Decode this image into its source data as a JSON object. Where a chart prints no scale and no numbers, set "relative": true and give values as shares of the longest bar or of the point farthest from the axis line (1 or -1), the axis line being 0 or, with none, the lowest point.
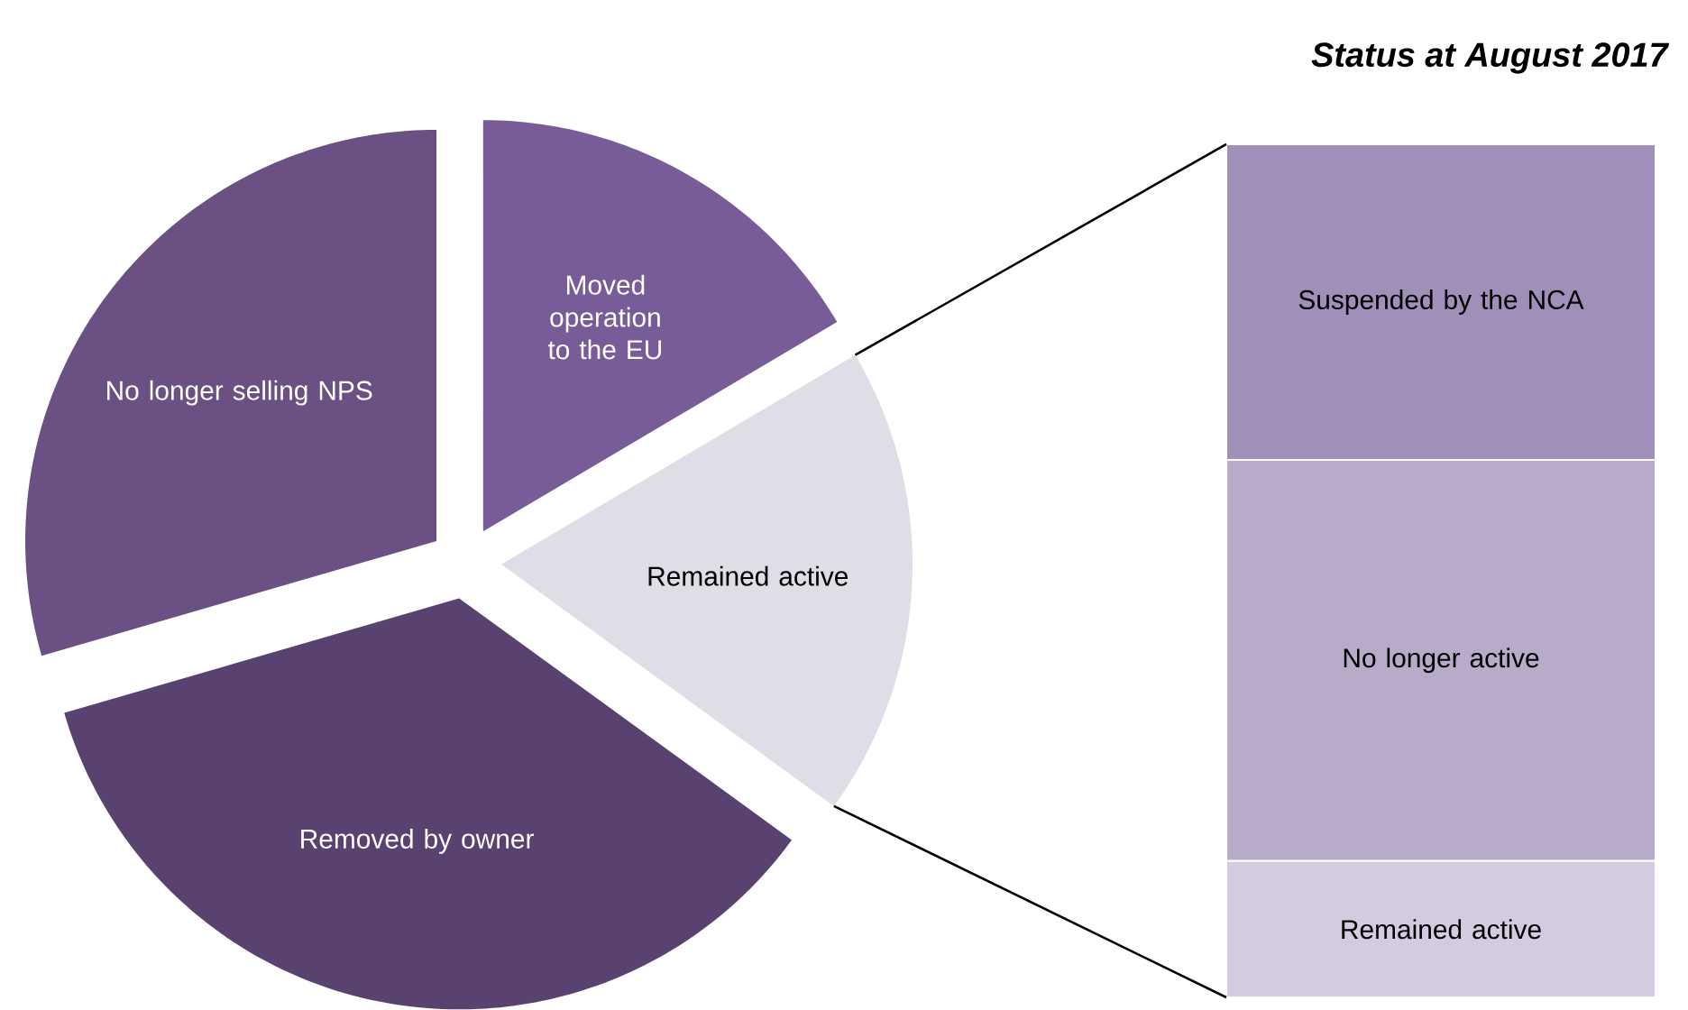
{
  "chart_data": [
    {
      "type": "pie",
      "categories": [
        "Moved operation to the EU",
        "Remained active",
        "Removed by owner",
        "No longer selling NPS"
      ],
      "values": [
        16.5,
        18.5,
        35.5,
        29.5
      ],
      "colors": [
        "#775c97",
        "#e0dde6",
        "#5a4270",
        "#6a5083"
      ]
    },
    {
      "type": "bar",
      "title": "Status at August 2017",
      "categories": [
        null
      ],
      "stacked": true,
      "relative": true,
      "legend": false,
      "series": [
        {
          "name": "Remained active",
          "color": "#d4cbe0",
          "values": [
            0.16
          ]
        },
        {
          "name": "No longer active",
          "color": "#b8abc9",
          "values": [
            0.47
          ]
        },
        {
          "name": "Suspended by the NCA",
          "color": "#a08fb8",
          "values": [
            0.37
          ]
        }
      ]
    }
  ]
}
